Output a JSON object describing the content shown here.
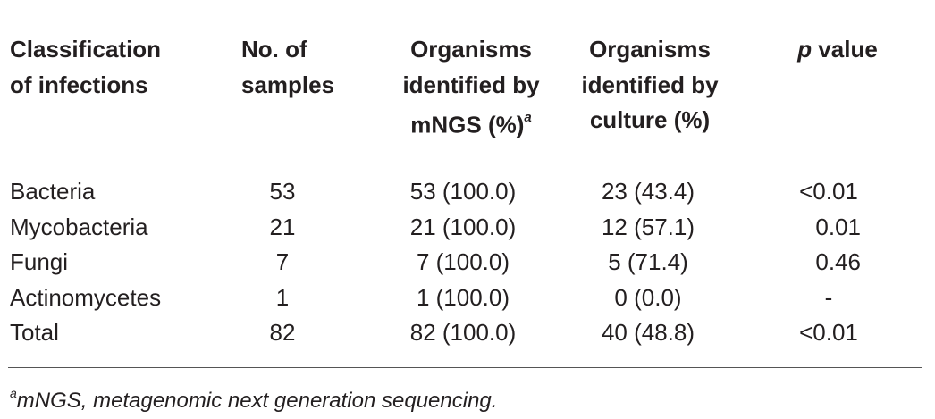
{
  "table": {
    "headers": {
      "classification": [
        "Classification",
        "of infections"
      ],
      "samples": [
        "No. of",
        "samples"
      ],
      "mngs": [
        "Organisms",
        "identified by",
        "mNGS (%)"
      ],
      "mngs_sup": "a",
      "culture": [
        "Organisms",
        "identified by",
        "culture (%)"
      ],
      "p_var": "p",
      "p_rest": " value"
    },
    "rows": [
      {
        "classification": "Bacteria",
        "samples": "53",
        "mngs": "53 (100.0)",
        "culture": "23 (43.4)",
        "p": "<0.01"
      },
      {
        "classification": "Mycobacteria",
        "samples": "21",
        "mngs": "21 (100.0)",
        "culture": "12 (57.1)",
        "p": "0.01"
      },
      {
        "classification": "Fungi",
        "samples": "7",
        "mngs": "7 (100.0)",
        "culture": "5 (71.4)",
        "p": "0.46"
      },
      {
        "classification": "Actinomycetes",
        "samples": "1",
        "mngs": "1 (100.0)",
        "culture": "0 (0.0)",
        "p": "-"
      },
      {
        "classification": "Total",
        "samples": "82",
        "mngs": "82 (100.0)",
        "culture": "40 (48.8)",
        "p": "<0.01"
      }
    ]
  },
  "footnote": {
    "marker": "a",
    "text": "mNGS, metagenomic next generation sequencing."
  }
}
